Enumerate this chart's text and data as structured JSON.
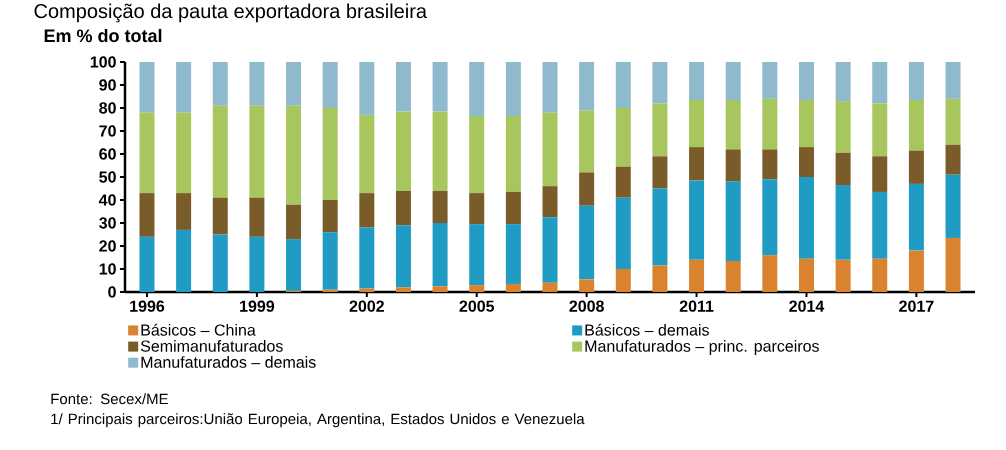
{
  "chart_data": {
    "type": "bar",
    "stacked": true,
    "title": "Composição da pauta exportadora brasileira",
    "subtitle": "Em % do total",
    "categories": [
      "1996",
      null,
      null,
      "1999",
      null,
      null,
      "2002",
      null,
      null,
      "2005",
      null,
      null,
      "2008",
      null,
      null,
      "2011",
      null,
      null,
      "2014",
      null,
      null,
      "2017",
      null
    ],
    "series": [
      {
        "name": "Básicos – China",
        "color": "#d9832e",
        "values": [
          0,
          0,
          0,
          0,
          0.5,
          1,
          1.5,
          2,
          2.5,
          3,
          3.5,
          4,
          5.5,
          10,
          11.5,
          14,
          13.5,
          16,
          14.5,
          14,
          14.5,
          18,
          23.5
        ]
      },
      {
        "name": "Básicos – demais",
        "color": "#1f9bc4",
        "values": [
          24,
          27,
          25,
          24,
          22.5,
          25,
          26.5,
          27,
          27.5,
          26.5,
          26,
          28.5,
          32,
          31,
          33.5,
          34.5,
          34.5,
          33,
          35.5,
          32.5,
          29,
          29,
          27.5
        ]
      },
      {
        "name": "Semimanufaturados",
        "color": "#7a5c2a",
        "values": [
          19,
          16,
          16,
          17,
          15,
          14,
          15,
          15,
          14,
          13.5,
          14,
          13.5,
          14.5,
          13.5,
          14,
          14.5,
          14,
          13,
          13,
          14,
          15.5,
          14.5,
          13
        ]
      },
      {
        "name": "Manufaturados – princ. parceiros",
        "color": "#a8c65e",
        "values": [
          35,
          35,
          40,
          40,
          43,
          40,
          34,
          34.5,
          34.5,
          33.5,
          33,
          32,
          27,
          25.5,
          23,
          20.5,
          21.5,
          22,
          20.5,
          22.5,
          23,
          22,
          20
        ]
      },
      {
        "name": "Manufaturados – demais",
        "color": "#8fb9cc",
        "values": [
          22,
          22,
          19,
          19,
          19,
          20,
          23,
          21.5,
          21.5,
          23.5,
          23.5,
          22,
          21,
          20,
          18,
          16.5,
          16.5,
          16,
          16.5,
          17,
          18,
          16.5,
          16
        ]
      }
    ],
    "ylim": [
      0,
      100
    ],
    "yticks": [
      0,
      10,
      20,
      30,
      40,
      50,
      60,
      70,
      80,
      90,
      100
    ],
    "legend": "bottom",
    "annotations": [
      "Fonte: Secex/ME",
      "1/ Principais parceiros:União Europeia, Argentina, Estados Unidos e Venezuela"
    ]
  }
}
